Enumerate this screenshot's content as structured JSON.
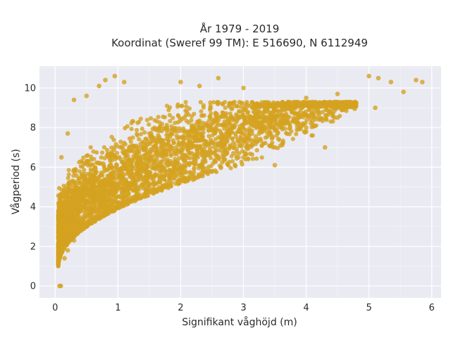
{
  "chart_data": {
    "type": "scatter",
    "title": "År 1979 - 2019",
    "subtitle": "Koordinat (Sweref 99 TM): E 516690, N 6112949",
    "xlabel": "Signifikant våghöjd (m)",
    "ylabel": "Vågperiod (s)",
    "xlim": [
      -0.25,
      6.15
    ],
    "ylim": [
      -0.6,
      11.1
    ],
    "xticks": [
      "0",
      "1",
      "2",
      "3",
      "4",
      "5",
      "6"
    ],
    "yticks": [
      "0",
      "2",
      "4",
      "6",
      "8",
      "10"
    ],
    "xtick_values": [
      0,
      1,
      2,
      3,
      4,
      5,
      6
    ],
    "ytick_values": [
      0,
      2,
      4,
      6,
      8,
      10
    ],
    "grid": true,
    "background": "#eaeaf2",
    "series": [
      {
        "color": "#d4a320",
        "sample_points": [
          [
            0.07,
            0.0
          ],
          [
            0.09,
            0.0
          ],
          [
            0.05,
            1.6
          ],
          [
            0.06,
            1.9
          ],
          [
            0.08,
            2.2
          ],
          [
            0.1,
            2.6
          ],
          [
            0.12,
            3.0
          ],
          [
            0.15,
            1.4
          ],
          [
            0.2,
            1.8
          ],
          [
            0.3,
            2.3
          ],
          [
            0.4,
            2.8
          ],
          [
            0.5,
            3.1
          ],
          [
            0.75,
            3.6
          ],
          [
            1.0,
            4.1
          ],
          [
            1.5,
            4.8
          ],
          [
            2.0,
            5.3
          ],
          [
            2.5,
            5.8
          ],
          [
            3.0,
            6.5
          ],
          [
            3.5,
            7.0
          ],
          [
            4.0,
            7.8
          ],
          [
            4.5,
            8.5
          ],
          [
            0.1,
            6.5
          ],
          [
            0.2,
            7.7
          ],
          [
            0.3,
            9.4
          ],
          [
            0.5,
            9.6
          ],
          [
            0.7,
            10.1
          ],
          [
            0.8,
            10.4
          ],
          [
            0.95,
            10.6
          ],
          [
            1.1,
            10.3
          ],
          [
            2.0,
            10.3
          ],
          [
            2.3,
            10.1
          ],
          [
            2.6,
            10.5
          ],
          [
            3.0,
            10.0
          ],
          [
            4.0,
            9.5
          ],
          [
            4.5,
            9.7
          ],
          [
            5.0,
            10.6
          ],
          [
            5.15,
            10.5
          ],
          [
            5.35,
            10.3
          ],
          [
            5.55,
            9.8
          ],
          [
            5.75,
            10.4
          ],
          [
            5.85,
            10.3
          ],
          [
            5.1,
            9.0
          ],
          [
            4.3,
            7.0
          ],
          [
            4.0,
            8.0
          ],
          [
            3.5,
            6.1
          ]
        ]
      }
    ]
  }
}
